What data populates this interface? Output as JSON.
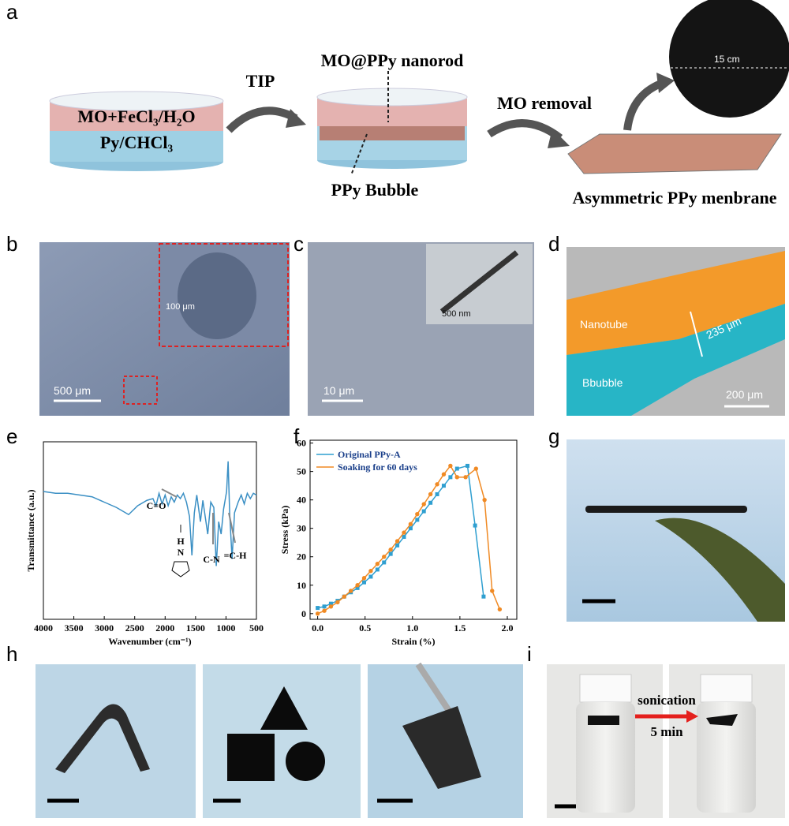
{
  "panel_labels": [
    "a",
    "b",
    "c",
    "d",
    "e",
    "f",
    "g",
    "h",
    "i"
  ],
  "panel_a": {
    "layer_top": "MO+FeCl₃/H₂O",
    "layer_bottom": "Py/CHCl₃",
    "step1": "TIP",
    "nanorod": "MO@PPy nanorod",
    "bubble": "PPy Bubble",
    "step2": "MO removal",
    "membrane": "Asymmetric PPy menbrane",
    "diameter": "15 cm"
  },
  "panel_b": {
    "scale": "500 μm",
    "inset_scale": "100 μm"
  },
  "panel_c": {
    "scale": "10 μm",
    "inset_scale": "500 nm"
  },
  "panel_d": {
    "top_layer": "Nanotube",
    "bottom_layer": "Bbubble",
    "thickness": "235 μm",
    "scale": "200 μm"
  },
  "panel_i": {
    "process": "sonication",
    "time": "5 min"
  },
  "chart_data": [
    {
      "type": "line",
      "x_label": "Wavenumber (cm⁻¹)",
      "y_label": "Transmittance (a.u.)",
      "x": [
        4000,
        3800,
        3600,
        3400,
        3200,
        3000,
        2800,
        2600,
        2450,
        2300,
        2200,
        2150,
        2100,
        2050,
        2000,
        1950,
        1900,
        1850,
        1800,
        1750,
        1700,
        1650,
        1600,
        1560,
        1520,
        1480,
        1420,
        1380,
        1300,
        1250,
        1200,
        1160,
        1120,
        1080,
        1040,
        990,
        965,
        940,
        900,
        860,
        800,
        750,
        700,
        650,
        600,
        550,
        500
      ],
      "series": [
        {
          "color": "#3a8fc4",
          "values": [
            72,
            71,
            71,
            70,
            69,
            66,
            63,
            59,
            64,
            67,
            68,
            64,
            71,
            65,
            70,
            64,
            69,
            66,
            70,
            68,
            71,
            66,
            58,
            36,
            60,
            70,
            55,
            67,
            48,
            66,
            63,
            30,
            55,
            48,
            62,
            72,
            89,
            60,
            34,
            60,
            66,
            70,
            65,
            71,
            68,
            71,
            70
          ]
        }
      ],
      "annotations": [
        "C=O",
        "H",
        "N",
        "C-N",
        "=C-H"
      ],
      "xlim": [
        4000,
        500
      ],
      "xticks": [
        4000,
        3500,
        3000,
        2500,
        2000,
        1500,
        1000,
        500
      ],
      "ylim": [
        0,
        100
      ]
    },
    {
      "type": "line",
      "x_label": "Strain (%)",
      "y_label": "Stress (kPa)",
      "legend": "upper left",
      "series": [
        {
          "name": "Original PPy-A",
          "color": "#2f9fd0",
          "marker": "square",
          "x": [
            0,
            0.07,
            0.14,
            0.21,
            0.28,
            0.35,
            0.42,
            0.49,
            0.56,
            0.63,
            0.7,
            0.77,
            0.84,
            0.91,
            0.98,
            1.05,
            1.12,
            1.19,
            1.26,
            1.33,
            1.4,
            1.47,
            1.58,
            1.66,
            1.75
          ],
          "values": [
            2,
            2.5,
            3.5,
            4.5,
            6,
            7.5,
            9,
            11,
            13,
            15.5,
            18,
            21,
            24,
            27,
            30,
            33,
            36,
            39,
            42,
            45,
            48,
            51,
            52,
            31,
            6
          ]
        },
        {
          "name": "Soaking for 60 days",
          "color": "#f08a24",
          "marker": "circle",
          "x": [
            0,
            0.07,
            0.14,
            0.21,
            0.28,
            0.35,
            0.42,
            0.49,
            0.56,
            0.63,
            0.7,
            0.77,
            0.84,
            0.91,
            0.98,
            1.05,
            1.12,
            1.19,
            1.26,
            1.33,
            1.4,
            1.47,
            1.56,
            1.67,
            1.76,
            1.84,
            1.92
          ],
          "values": [
            0,
            1,
            2.5,
            4,
            6,
            8,
            10,
            12.5,
            15,
            17.5,
            20,
            22.5,
            25.5,
            28.5,
            31.5,
            35,
            38.5,
            42,
            45.5,
            49,
            52,
            48,
            48,
            51,
            40,
            8,
            1.5
          ]
        }
      ],
      "xlim": [
        -0.08,
        2.1
      ],
      "xticks": [
        {
          "value": 0,
          "label": "0.0"
        },
        {
          "value": 0.5,
          "label": "0.5"
        },
        {
          "value": 1,
          "label": "1.0"
        },
        {
          "value": 1.5,
          "label": "1.5"
        },
        {
          "value": 2,
          "label": "2.0"
        }
      ],
      "ylim": [
        -2,
        61
      ],
      "yticks": [
        0,
        10,
        20,
        30,
        40,
        50,
        60
      ]
    }
  ]
}
